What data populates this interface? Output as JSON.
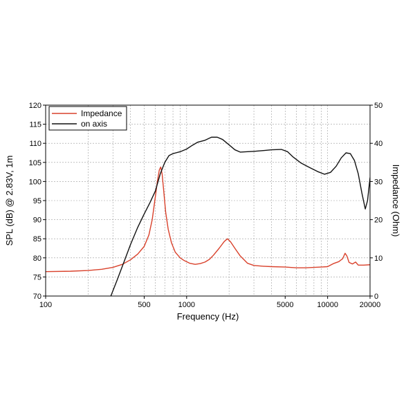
{
  "chart_data": {
    "type": "line",
    "xscale": "log",
    "xlim": [
      100,
      20000
    ],
    "ylim_left": [
      70,
      120
    ],
    "ylim_right": [
      0,
      50
    ],
    "xlabel": "Frequency (Hz)",
    "ylabel_left": "SPL (dB) @ 2.83V, 1m",
    "ylabel_right": "Impedance (Ohm)",
    "grid": true,
    "legend_position": "top-left",
    "x_ticks": [
      {
        "value": 100,
        "label": "100"
      },
      {
        "value": 500,
        "label": "500"
      },
      {
        "value": 1000,
        "label": "1000"
      },
      {
        "value": 5000,
        "label": "5000"
      },
      {
        "value": 10000,
        "label": "10000"
      },
      {
        "value": 20000,
        "label": "20000"
      }
    ],
    "y_ticks_left": [
      "70",
      "75",
      "80",
      "85",
      "90",
      "95",
      "100",
      "105",
      "110",
      "115",
      "120"
    ],
    "y_ticks_right": [
      "0",
      "10",
      "20",
      "30",
      "40",
      "50"
    ],
    "series": [
      {
        "name": "Impedance",
        "axis": "right",
        "color": "#d9412b",
        "points": [
          [
            100,
            6.4
          ],
          [
            150,
            6.5
          ],
          [
            200,
            6.7
          ],
          [
            250,
            7.0
          ],
          [
            300,
            7.5
          ],
          [
            350,
            8.3
          ],
          [
            400,
            9.5
          ],
          [
            450,
            11.0
          ],
          [
            500,
            13.0
          ],
          [
            540,
            16.0
          ],
          [
            570,
            20.0
          ],
          [
            600,
            26.0
          ],
          [
            620,
            30.0
          ],
          [
            640,
            33.0
          ],
          [
            655,
            33.8
          ],
          [
            670,
            32.0
          ],
          [
            690,
            27.0
          ],
          [
            710,
            22.0
          ],
          [
            740,
            17.5
          ],
          [
            780,
            14.0
          ],
          [
            830,
            11.5
          ],
          [
            900,
            10.0
          ],
          [
            960,
            9.3
          ],
          [
            1050,
            8.6
          ],
          [
            1150,
            8.3
          ],
          [
            1250,
            8.5
          ],
          [
            1350,
            8.9
          ],
          [
            1450,
            9.6
          ],
          [
            1550,
            10.7
          ],
          [
            1700,
            12.5
          ],
          [
            1850,
            14.3
          ],
          [
            1950,
            15.0
          ],
          [
            2050,
            14.2
          ],
          [
            2200,
            12.5
          ],
          [
            2400,
            10.5
          ],
          [
            2700,
            8.6
          ],
          [
            3000,
            8.0
          ],
          [
            3500,
            7.8
          ],
          [
            4000,
            7.7
          ],
          [
            5000,
            7.6
          ],
          [
            6000,
            7.4
          ],
          [
            7000,
            7.4
          ],
          [
            8000,
            7.5
          ],
          [
            9000,
            7.6
          ],
          [
            10000,
            7.7
          ],
          [
            11000,
            8.5
          ],
          [
            12000,
            9.0
          ],
          [
            12800,
            9.8
          ],
          [
            13300,
            11.2
          ],
          [
            13700,
            10.5
          ],
          [
            14200,
            8.8
          ],
          [
            15000,
            8.4
          ],
          [
            15800,
            8.9
          ],
          [
            16500,
            8.1
          ],
          [
            18000,
            8.1
          ],
          [
            20000,
            8.2
          ]
        ]
      },
      {
        "name": "on axis",
        "axis": "left",
        "color": "#111111",
        "points": [
          [
            290,
            70.0
          ],
          [
            320,
            74.0
          ],
          [
            360,
            79.0
          ],
          [
            400,
            83.5
          ],
          [
            450,
            88.0
          ],
          [
            500,
            91.5
          ],
          [
            550,
            94.5
          ],
          [
            600,
            97.5
          ],
          [
            650,
            102.0
          ],
          [
            700,
            105.0
          ],
          [
            750,
            106.8
          ],
          [
            800,
            107.3
          ],
          [
            900,
            107.8
          ],
          [
            1000,
            108.5
          ],
          [
            1100,
            109.5
          ],
          [
            1200,
            110.3
          ],
          [
            1350,
            110.8
          ],
          [
            1500,
            111.6
          ],
          [
            1650,
            111.6
          ],
          [
            1800,
            111.0
          ],
          [
            2000,
            109.6
          ],
          [
            2200,
            108.3
          ],
          [
            2400,
            107.7
          ],
          [
            2700,
            107.8
          ],
          [
            3000,
            107.9
          ],
          [
            3500,
            108.1
          ],
          [
            4000,
            108.3
          ],
          [
            4700,
            108.4
          ],
          [
            5200,
            107.8
          ],
          [
            5700,
            106.4
          ],
          [
            6500,
            104.8
          ],
          [
            7500,
            103.6
          ],
          [
            8500,
            102.6
          ],
          [
            9500,
            101.9
          ],
          [
            10500,
            102.4
          ],
          [
            11500,
            104.0
          ],
          [
            12500,
            106.2
          ],
          [
            13500,
            107.5
          ],
          [
            14500,
            107.3
          ],
          [
            15500,
            105.5
          ],
          [
            16500,
            102.0
          ],
          [
            17500,
            97.0
          ],
          [
            18500,
            92.8
          ],
          [
            19200,
            95.0
          ],
          [
            20000,
            101.0
          ]
        ]
      }
    ]
  }
}
